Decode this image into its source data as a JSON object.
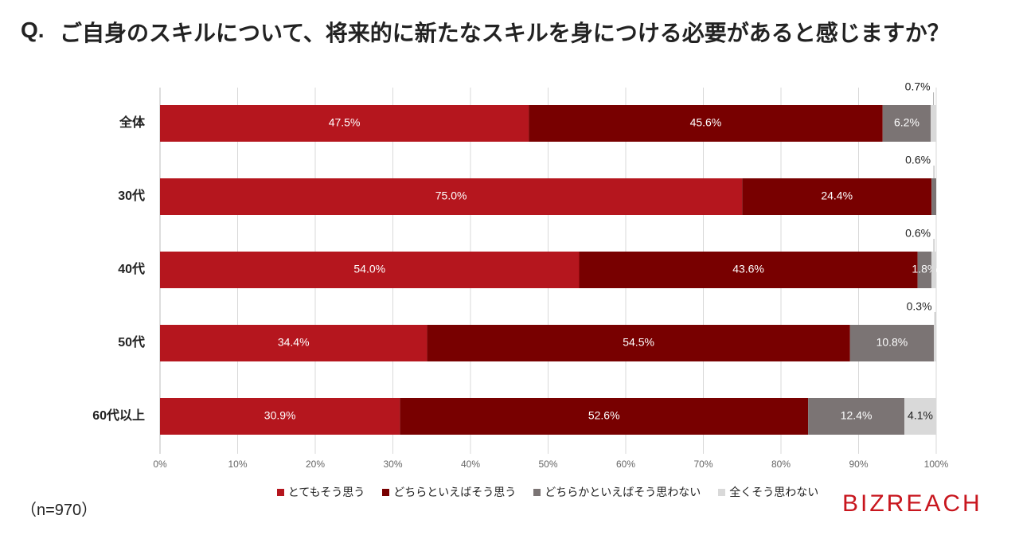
{
  "chart_data": {
    "type": "stacked-bar-horizontal",
    "question_marker": "Q.",
    "title": "ご自身のスキルについて、将来的に新たなスキルを身につける必要があると感じますか？",
    "categories": [
      "全体",
      "30代",
      "40代",
      "50代",
      "60代以上"
    ],
    "series": [
      {
        "name": "とてもそう思う",
        "color": "#b5161e",
        "values": [
          47.5,
          75.0,
          54.0,
          34.4,
          30.9
        ],
        "value_labels": [
          "47.5%",
          "75.0%",
          "54.0%",
          "34.4%",
          "30.9%"
        ]
      },
      {
        "name": "どちらといえばそう思う",
        "color": "#780000",
        "values": [
          45.6,
          24.4,
          43.6,
          54.5,
          52.6
        ],
        "value_labels": [
          "45.6%",
          "24.4%",
          "43.6%",
          "54.5%",
          "52.6%"
        ]
      },
      {
        "name": "どちらかといえばそう思わない",
        "color": "#7b7474",
        "values": [
          6.2,
          0.6,
          1.8,
          10.8,
          12.4
        ],
        "value_labels": [
          "6.2%",
          "0.6%",
          "1.8%",
          "10.8%",
          "12.4%"
        ]
      },
      {
        "name": "全くそう思わない",
        "color": "#d9d9d9",
        "values": [
          0.7,
          0,
          0.6,
          0.3,
          4.1
        ],
        "value_labels": [
          "0.7%",
          null,
          "0.6%",
          "0.3%",
          "4.1%"
        ]
      }
    ],
    "xlim": [
      0,
      100
    ],
    "xticks": [
      {
        "value": 0,
        "label": "0%"
      },
      {
        "value": 10,
        "label": "10%"
      },
      {
        "value": 20,
        "label": "20%"
      },
      {
        "value": 30,
        "label": "30%"
      },
      {
        "value": 40,
        "label": "40%"
      },
      {
        "value": 50,
        "label": "50%"
      },
      {
        "value": 60,
        "label": "60%"
      },
      {
        "value": 70,
        "label": "70%"
      },
      {
        "value": 80,
        "label": "80%"
      },
      {
        "value": 90,
        "label": "90%"
      },
      {
        "value": 100,
        "label": "100%"
      }
    ],
    "grid": true,
    "legend": "bottom",
    "note": "（n=970）",
    "logo": "BIZREACH"
  }
}
